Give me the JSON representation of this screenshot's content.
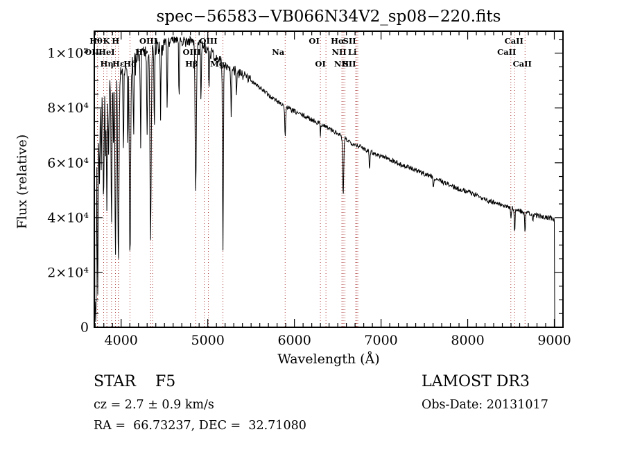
{
  "title": "spec−56583−VB066N34V2_sp08−220.fits",
  "axes": {
    "xlabel": "Wavelength (Å)",
    "ylabel": "Flux (relative)"
  },
  "annotations": {
    "object_class": "STAR    F5",
    "cz": "cz = 2.7 ± 0.9 km/s",
    "ra_dec": "RA =  66.73237, DEC =  32.71080",
    "survey": "LAMOST DR3",
    "obs_date": "Obs-Date: 20131017"
  },
  "chart_data": {
    "type": "line",
    "title": "spec−56583−VB066N34V2_sp08−220.fits",
    "xlabel": "Wavelength (Å)",
    "ylabel": "Flux (relative)",
    "xlim": [
      3690,
      9100
    ],
    "ylim": [
      0,
      108000
    ],
    "x_ticks": [
      4000,
      5000,
      6000,
      7000,
      8000,
      9000
    ],
    "x_tick_labels": [
      "4000",
      "5000",
      "6000",
      "7000",
      "8000",
      "9000"
    ],
    "x_minor_step": 100,
    "y_ticks": [
      0,
      20000,
      40000,
      60000,
      80000,
      100000
    ],
    "y_tick_labels": [
      "0",
      "2×10⁴",
      "4×10⁴",
      "6×10⁴",
      "8×10⁴",
      "1×10⁵"
    ],
    "y_minor_step": 5000,
    "grid": false,
    "legend": null,
    "line_color": "#000000",
    "marker_color": "#aa3333",
    "spectral_lines": [
      {
        "wavelength": 3727,
        "label": "OII",
        "row": 2,
        "dx": -8
      },
      {
        "wavelength": 3798,
        "label": "Hθ",
        "row": 1,
        "dx": -11
      },
      {
        "wavelength": 3835,
        "label": "Hη",
        "row": 3,
        "dx": 0
      },
      {
        "wavelength": 3889,
        "label": "HeI",
        "row": 2,
        "dx": -7
      },
      {
        "wavelength": 3934,
        "label": "K",
        "row": 1,
        "dx": -13
      },
      {
        "wavelength": 3968,
        "label": "H",
        "row": 1,
        "dx": -4
      },
      {
        "wavelength": 3970,
        "label": "Hε",
        "row": 3,
        "dx": 0
      },
      {
        "wavelength": 4102,
        "label": "Hδ",
        "row": 3,
        "dx": 0
      },
      {
        "wavelength": 4340,
        "label": "Hγ",
        "row": 2,
        "dx": -13
      },
      {
        "wavelength": 4363,
        "label": "OIII",
        "row": 1,
        "dx": -6
      },
      {
        "wavelength": 4861,
        "label": "Hβ",
        "row": 3,
        "dx": -6
      },
      {
        "wavelength": 4959,
        "label": "OIII",
        "row": 2,
        "dx": -18
      },
      {
        "wavelength": 5007,
        "label": "OIII",
        "row": 1,
        "dx": 0
      },
      {
        "wavelength": 5175,
        "label": "Mg",
        "row": 3,
        "dx": -8
      },
      {
        "wavelength": 5893,
        "label": "Na",
        "row": 2,
        "dx": -10
      },
      {
        "wavelength": 6300,
        "label": "OI",
        "row": 1,
        "dx": -9
      },
      {
        "wavelength": 6364,
        "label": "OI",
        "row": 3,
        "dx": -8
      },
      {
        "wavelength": 6548,
        "label": "NII",
        "row": 2,
        "dx": -4
      },
      {
        "wavelength": 6563,
        "label": "Hα",
        "row": 1,
        "dx": -8
      },
      {
        "wavelength": 6583,
        "label": "NII",
        "row": 3,
        "dx": -5
      },
      {
        "wavelength": 6708,
        "label": "Li",
        "row": 2,
        "dx": -5
      },
      {
        "wavelength": 6716,
        "label": "SII",
        "row": 1,
        "dx": -10
      },
      {
        "wavelength": 6731,
        "label": "SII",
        "row": 3,
        "dx": -12
      },
      {
        "wavelength": 8498,
        "label": "CaII",
        "row": 2,
        "dx": -6
      },
      {
        "wavelength": 8542,
        "label": "CaII",
        "row": 1,
        "dx": -1
      },
      {
        "wavelength": 8662,
        "label": "CaII",
        "row": 3,
        "dx": -4
      }
    ],
    "continuum": [
      [
        3700,
        80000
      ],
      [
        3760,
        83000
      ],
      [
        3850,
        88000
      ],
      [
        3950,
        91000
      ],
      [
        4050,
        94000
      ],
      [
        4150,
        98000
      ],
      [
        4250,
        101000
      ],
      [
        4350,
        102000
      ],
      [
        4450,
        103000
      ],
      [
        4550,
        104000
      ],
      [
        4700,
        105000
      ],
      [
        4850,
        104000
      ],
      [
        4950,
        102500
      ],
      [
        5050,
        100000
      ],
      [
        5150,
        97000
      ],
      [
        5250,
        95000
      ],
      [
        5350,
        93000
      ],
      [
        5450,
        91000
      ],
      [
        5550,
        89000
      ],
      [
        5650,
        86000
      ],
      [
        5750,
        83500
      ],
      [
        5850,
        81500
      ],
      [
        5950,
        79500
      ],
      [
        6050,
        78000
      ],
      [
        6150,
        76500
      ],
      [
        6250,
        75000
      ],
      [
        6350,
        73500
      ],
      [
        6450,
        71500
      ],
      [
        6550,
        69500
      ],
      [
        6650,
        67500
      ],
      [
        6750,
        66000
      ],
      [
        6850,
        64500
      ],
      [
        6950,
        63000
      ],
      [
        7050,
        62000
      ],
      [
        7150,
        60500
      ],
      [
        7250,
        59000
      ],
      [
        7350,
        58000
      ],
      [
        7450,
        56500
      ],
      [
        7550,
        55500
      ],
      [
        7650,
        54000
      ],
      [
        7750,
        52500
      ],
      [
        7850,
        51000
      ],
      [
        7950,
        50000
      ],
      [
        8050,
        49000
      ],
      [
        8150,
        47500
      ],
      [
        8250,
        46000
      ],
      [
        8350,
        45000
      ],
      [
        8450,
        44000
      ],
      [
        8550,
        43000
      ],
      [
        8650,
        42000
      ],
      [
        8750,
        41000
      ],
      [
        8850,
        40500
      ],
      [
        9012,
        39500
      ]
    ],
    "absorption_dips": [
      [
        3706,
        500,
        9
      ],
      [
        3729,
        12000,
        6
      ],
      [
        3750,
        52000,
        5
      ],
      [
        3770,
        56000,
        4
      ],
      [
        3798,
        46000,
        5
      ],
      [
        3820,
        60000,
        4
      ],
      [
        3835,
        40000,
        5
      ],
      [
        3856,
        62000,
        4
      ],
      [
        3889,
        36000,
        5
      ],
      [
        3912,
        64000,
        4
      ],
      [
        3934,
        26000,
        6
      ],
      [
        3968,
        23000,
        7
      ],
      [
        4026,
        62000,
        4
      ],
      [
        4077,
        66000,
        4
      ],
      [
        4102,
        23000,
        7
      ],
      [
        4144,
        68000,
        4
      ],
      [
        4226,
        65000,
        4
      ],
      [
        4300,
        70000,
        5
      ],
      [
        4340,
        31000,
        7
      ],
      [
        4383,
        72000,
        4
      ],
      [
        4455,
        78000,
        4
      ],
      [
        4531,
        80000,
        4
      ],
      [
        4668,
        82000,
        4
      ],
      [
        4861,
        48000,
        7
      ],
      [
        4921,
        84000,
        4
      ],
      [
        5015,
        86000,
        4
      ],
      [
        5175,
        28000,
        5
      ],
      [
        5270,
        78000,
        4
      ],
      [
        5332,
        83000,
        4
      ],
      [
        5893,
        69000,
        5
      ],
      [
        6300,
        70000,
        3
      ],
      [
        6563,
        47000,
        6
      ],
      [
        6867,
        58000,
        4
      ],
      [
        7605,
        50500,
        5
      ],
      [
        8498,
        39500,
        4
      ],
      [
        8542,
        34500,
        4
      ],
      [
        8662,
        33500,
        4
      ],
      [
        8752,
        38500,
        4
      ]
    ],
    "noise": {
      "seed": 7,
      "step": 5,
      "blue_amp": 2600,
      "mid_amp": 1900,
      "red_amp": 900
    }
  }
}
